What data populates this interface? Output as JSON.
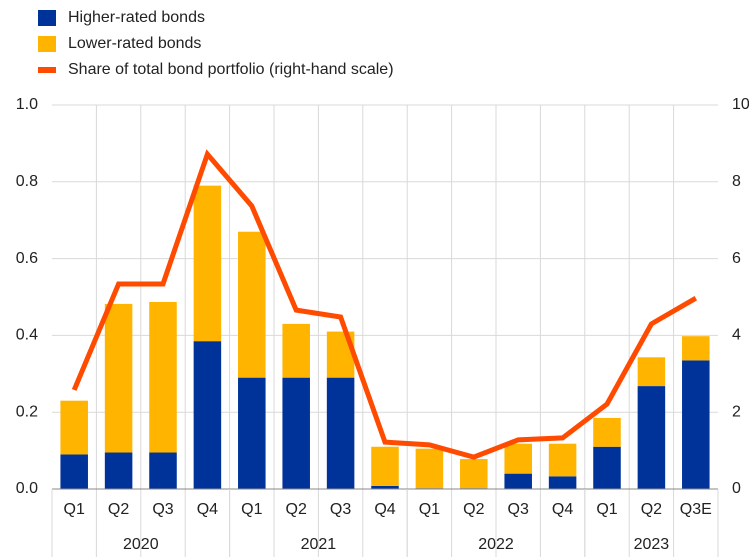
{
  "chart_data": {
    "type": "bar",
    "stacked": true,
    "categories": [
      "Q1",
      "Q2",
      "Q3",
      "Q4",
      "Q1",
      "Q2",
      "Q3",
      "Q4",
      "Q1",
      "Q2",
      "Q3",
      "Q4",
      "Q1",
      "Q2",
      "Q3E"
    ],
    "groups": [
      {
        "label": "2020",
        "size": 4
      },
      {
        "label": "2021",
        "size": 4
      },
      {
        "label": "2022",
        "size": 4
      },
      {
        "label": "2023",
        "size": 3
      }
    ],
    "series": [
      {
        "name": "Higher-rated bonds",
        "color": "#003399",
        "type": "bar",
        "values": [
          0.09,
          0.095,
          0.095,
          0.385,
          0.29,
          0.29,
          0.29,
          0.008,
          0.002,
          0.002,
          0.04,
          0.033,
          0.11,
          0.268,
          0.335
        ]
      },
      {
        "name": "Lower-rated bonds",
        "color": "#ffb400",
        "type": "bar",
        "values": [
          0.14,
          0.387,
          0.392,
          0.405,
          0.38,
          0.14,
          0.12,
          0.102,
          0.103,
          0.076,
          0.078,
          0.085,
          0.075,
          0.075,
          0.063
        ]
      },
      {
        "name": "Share of total bond portfolio (right-hand scale)",
        "color": "#ff4b00",
        "type": "line",
        "axis": "y2",
        "values": [
          2.58,
          5.34,
          5.34,
          8.72,
          7.37,
          4.66,
          4.48,
          1.22,
          1.15,
          0.83,
          1.28,
          1.33,
          2.21,
          4.3,
          4.97
        ]
      }
    ],
    "ylim": [
      0,
      1
    ],
    "yticks": [
      {
        "value": 0,
        "label": "0.0"
      },
      0.2,
      0.4,
      0.6,
      0.8,
      {
        "value": 1,
        "label": "1.0"
      }
    ],
    "y2lim": [
      0,
      10
    ],
    "y2ticks": [
      0,
      2,
      4,
      6,
      8,
      10
    ],
    "grid": true
  }
}
